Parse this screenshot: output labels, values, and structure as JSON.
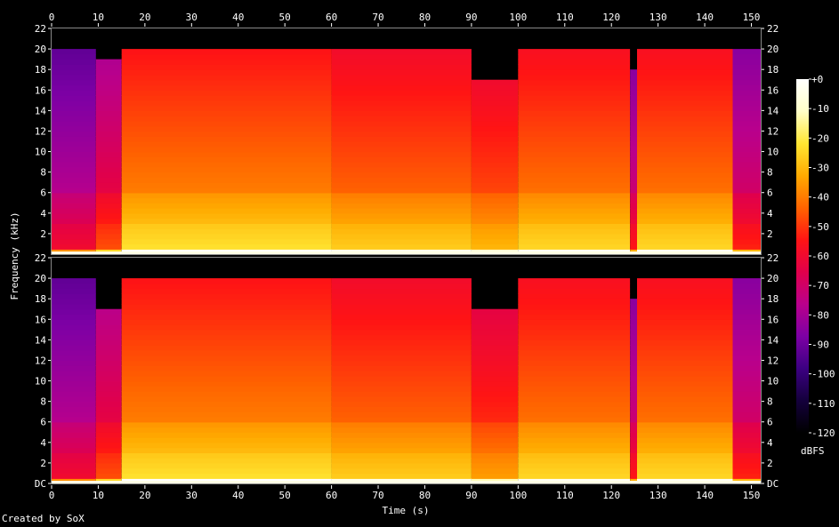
{
  "credit": "Created by SoX",
  "chart_data": {
    "type": "heatmap",
    "subtype": "spectrogram",
    "xlabel": "Time (s)",
    "ylabel": "Frequency (kHz)",
    "xlim": [
      0,
      152
    ],
    "ylim": [
      0,
      22
    ],
    "x_ticks": [
      0,
      10,
      20,
      30,
      40,
      50,
      60,
      70,
      80,
      90,
      100,
      110,
      120,
      130,
      140,
      150
    ],
    "y_ticks": [
      {
        "v": 0,
        "t": "DC"
      },
      {
        "v": 2,
        "t": "2"
      },
      {
        "v": 4,
        "t": "4"
      },
      {
        "v": 6,
        "t": "6"
      },
      {
        "v": 8,
        "t": "8"
      },
      {
        "v": 10,
        "t": "10"
      },
      {
        "v": 12,
        "t": "12"
      },
      {
        "v": 14,
        "t": "14"
      },
      {
        "v": 16,
        "t": "16"
      },
      {
        "v": 18,
        "t": "18"
      },
      {
        "v": 20,
        "t": "20"
      },
      {
        "v": 22,
        "t": "22"
      }
    ],
    "colorbar": {
      "unit": "dBFS",
      "range": [
        -120,
        0
      ],
      "ticks": [
        {
          "v": 0,
          "t": "+0"
        },
        {
          "v": -10,
          "t": "-10"
        },
        {
          "v": -20,
          "t": "-20"
        },
        {
          "v": -30,
          "t": "-30"
        },
        {
          "v": -40,
          "t": "-40"
        },
        {
          "v": -50,
          "t": "-50"
        },
        {
          "v": -60,
          "t": "-60"
        },
        {
          "v": -70,
          "t": "-70"
        },
        {
          "v": -80,
          "t": "-80"
        },
        {
          "v": -90,
          "t": "-90"
        },
        {
          "v": -100,
          "t": "-100"
        },
        {
          "v": -110,
          "t": "-110"
        },
        {
          "v": -120,
          "t": "-120"
        }
      ],
      "gradient": [
        "#000000",
        "#14003c",
        "#3c0082",
        "#7d00a5",
        "#b9008c",
        "#e1004b",
        "#ff1414",
        "#ff6400",
        "#ffaa00",
        "#ffe632",
        "#ffffc8",
        "#ffffff"
      ]
    },
    "channels": [
      {
        "name": "",
        "segments": [
          {
            "t0": 0,
            "t1": 9.5,
            "level": -85,
            "top_khz": 20
          },
          {
            "t0": 9.5,
            "t1": 15,
            "level": -72,
            "top_khz": 19
          },
          {
            "t0": 15,
            "t1": 60,
            "level": -48,
            "top_khz": 20
          },
          {
            "t0": 60,
            "t1": 90,
            "level": -52,
            "top_khz": 20
          },
          {
            "t0": 90,
            "t1": 100,
            "level": -56,
            "top_khz": 17
          },
          {
            "t0": 100,
            "t1": 124,
            "level": -50,
            "top_khz": 20
          },
          {
            "t0": 124,
            "t1": 125.5,
            "level": -80,
            "top_khz": 18
          },
          {
            "t0": 125.5,
            "t1": 146,
            "level": -50,
            "top_khz": 20
          },
          {
            "t0": 146,
            "t1": 152,
            "level": -78,
            "top_khz": 20
          }
        ]
      },
      {
        "name": "",
        "segments": [
          {
            "t0": 0,
            "t1": 9.5,
            "level": -85,
            "top_khz": 20
          },
          {
            "t0": 9.5,
            "t1": 15,
            "level": -72,
            "top_khz": 17
          },
          {
            "t0": 15,
            "t1": 60,
            "level": -48,
            "top_khz": 20
          },
          {
            "t0": 60,
            "t1": 90,
            "level": -52,
            "top_khz": 20
          },
          {
            "t0": 90,
            "t1": 100,
            "level": -60,
            "top_khz": 17
          },
          {
            "t0": 100,
            "t1": 124,
            "level": -50,
            "top_khz": 20
          },
          {
            "t0": 124,
            "t1": 125.5,
            "level": -80,
            "top_khz": 18
          },
          {
            "t0": 125.5,
            "t1": 146,
            "level": -50,
            "top_khz": 20
          },
          {
            "t0": 146,
            "t1": 152,
            "level": -78,
            "top_khz": 20
          }
        ]
      }
    ]
  }
}
